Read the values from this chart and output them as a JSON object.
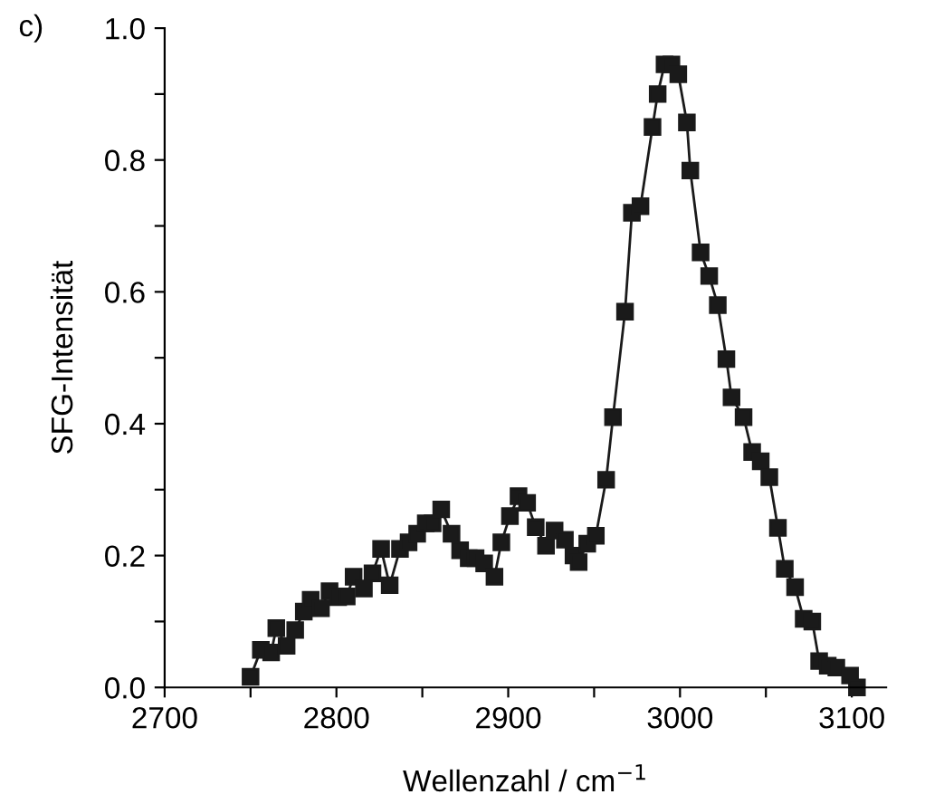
{
  "chart_data": {
    "type": "line",
    "xlabel": "Wellenzahl / cm$^{−1}$",
    "ylabel": "SFG-Intensität",
    "annotations": [
      "c)"
    ],
    "marker": "square",
    "line_style": "solid",
    "grid": false,
    "legend": false,
    "xlim": [
      2700,
      3120
    ],
    "ylim": [
      0,
      1.0
    ],
    "xticks": [
      2700,
      {
        "value": 2750,
        "label": null
      },
      2800,
      {
        "value": 2850,
        "label": null
      },
      2900,
      {
        "value": 2950,
        "label": null
      },
      3000,
      {
        "value": 3050,
        "label": null
      },
      3100
    ],
    "yticks": [
      {
        "value": 0,
        "label": "0.0"
      },
      {
        "value": 0.1,
        "label": null
      },
      0.2,
      {
        "value": 0.3,
        "label": null
      },
      0.4,
      {
        "value": 0.5,
        "label": null
      },
      0.6,
      {
        "value": 0.7,
        "label": null
      },
      0.8,
      {
        "value": 0.9,
        "label": null
      },
      {
        "value": 1,
        "label": "1.0"
      }
    ],
    "series": [
      {
        "color": "#1a1a1a",
        "x": [
          2750,
          2756,
          2762,
          2765,
          2771,
          2776,
          2781,
          2785,
          2791,
          2796,
          2801,
          2806,
          2810,
          2816,
          2821,
          2826,
          2831,
          2837,
          2842,
          2847,
          2852,
          2856,
          2861,
          2867,
          2872,
          2877,
          2881,
          2886,
          2892,
          2896,
          2901,
          2906,
          2911,
          2916,
          2922,
          2927,
          2933,
          2938,
          2941,
          2946,
          2951,
          2957,
          2961,
          2968,
          2972,
          2977,
          2984,
          2987,
          2991,
          2995,
          2999,
          3004,
          3006,
          3012,
          3017,
          3022,
          3027,
          3030,
          3037,
          3042,
          3047,
          3052,
          3057,
          3061,
          3067,
          3072,
          3077,
          3081,
          3086,
          3091,
          3099,
          3103
        ],
        "values": [
          0.016,
          0.057,
          0.053,
          0.09,
          0.063,
          0.087,
          0.115,
          0.133,
          0.12,
          0.146,
          0.137,
          0.138,
          0.168,
          0.15,
          0.173,
          0.21,
          0.155,
          0.21,
          0.22,
          0.233,
          0.249,
          0.249,
          0.27,
          0.233,
          0.208,
          0.196,
          0.196,
          0.188,
          0.168,
          0.22,
          0.26,
          0.29,
          0.28,
          0.243,
          0.215,
          0.238,
          0.224,
          0.2,
          0.19,
          0.218,
          0.23,
          0.315,
          0.41,
          0.57,
          0.72,
          0.73,
          0.85,
          0.9,
          0.945,
          0.945,
          0.93,
          0.857,
          0.784,
          0.66,
          0.624,
          0.58,
          0.498,
          0.44,
          0.41,
          0.357,
          0.343,
          0.319,
          0.242,
          0.18,
          0.152,
          0.104,
          0.1,
          0.04,
          0.033,
          0.03,
          0.018,
          0.0
        ]
      }
    ]
  }
}
